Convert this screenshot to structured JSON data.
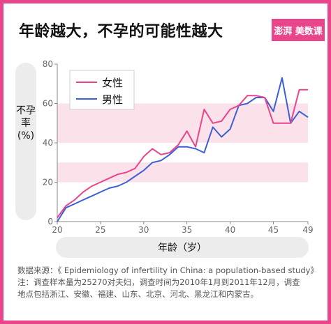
{
  "header": {
    "title": "年龄越大，不孕的可能性越大",
    "logo_text": "澎湃 美数课"
  },
  "colors": {
    "accent": "#e8458b",
    "female": "#e8458b",
    "male": "#3a5fd6",
    "band": "#fbe1ea",
    "axis_pill": "#ececec"
  },
  "source": {
    "line1": "数据来源：《 Epidemiology of infertility in China: a population-based study》",
    "line2": "注：调查样本量为25270对夫妇，调查时间为2010年1月到2011年12月，调查",
    "line3": "地点包括浙江、安徽、福建、山东、北京、河北、黑龙江和内蒙古。"
  },
  "chart_data": {
    "type": "line",
    "xlabel": "年龄（岁）",
    "ylabel": "不孕率(%)",
    "xlim": [
      20,
      49
    ],
    "ylim": [
      0,
      80
    ],
    "xticks": [
      20,
      25,
      30,
      35,
      40,
      45,
      49
    ],
    "yticks": [
      0,
      20,
      40,
      60,
      80
    ],
    "bands": [
      [
        20,
        30
      ],
      [
        40,
        60
      ]
    ],
    "legend_position": "top-left",
    "x": [
      20,
      21,
      22,
      23,
      24,
      25,
      26,
      27,
      28,
      29,
      30,
      31,
      32,
      33,
      34,
      35,
      36,
      37,
      38,
      39,
      40,
      41,
      42,
      43,
      44,
      45,
      46,
      47,
      48,
      49
    ],
    "series": [
      {
        "name": "女性",
        "values": [
          2,
          8,
          11,
          15,
          18,
          20,
          22,
          24,
          25,
          27,
          33,
          37,
          34,
          35,
          39,
          46,
          38,
          57,
          50,
          51,
          57,
          59,
          64,
          64,
          63,
          50,
          50,
          50,
          67,
          67
        ]
      },
      {
        "name": "男性",
        "values": [
          0,
          7,
          9,
          11,
          13,
          15,
          17,
          18,
          20,
          23,
          26,
          30,
          31,
          34,
          38,
          38,
          37,
          35,
          48,
          43,
          47,
          59,
          60,
          63,
          63,
          56,
          73,
          50,
          56,
          53
        ]
      }
    ]
  }
}
